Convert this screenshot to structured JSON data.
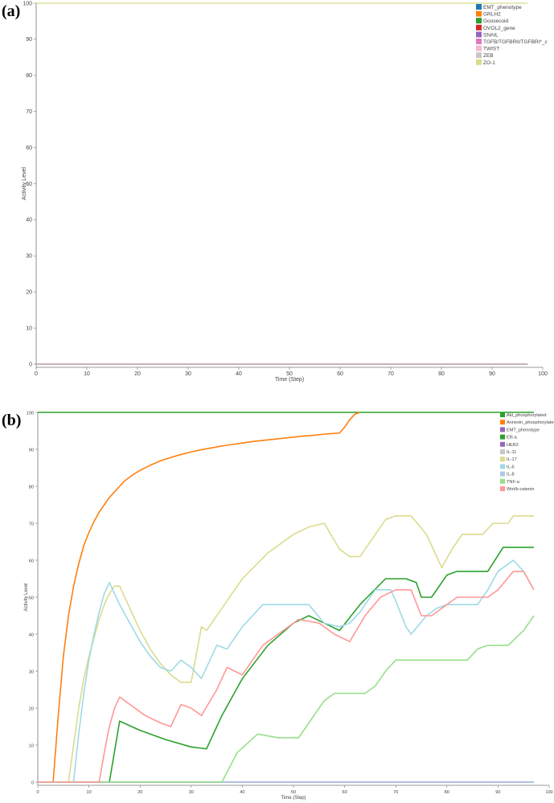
{
  "panels": [
    {
      "label": "(a)"
    },
    {
      "label": "(b)"
    }
  ],
  "chart_data": [
    {
      "type": "line",
      "xlabel": "Time (Step)",
      "ylabel": "Activity Level",
      "xlim": [
        0,
        100
      ],
      "ylim": [
        0,
        100
      ],
      "xticks": [
        0,
        10,
        20,
        30,
        40,
        50,
        60,
        70,
        80,
        90,
        100
      ],
      "yticks": [
        0,
        10,
        20,
        30,
        40,
        50,
        60,
        70,
        80,
        90,
        100
      ],
      "legend_position": "top-right",
      "series": [
        {
          "name": "EMT_phenotype",
          "color": "#1f77b4",
          "x": [
            0,
            97
          ],
          "y": [
            0,
            0
          ]
        },
        {
          "name": "GRLH2",
          "color": "#ff7f0e",
          "x": [
            0,
            97
          ],
          "y": [
            0,
            0
          ]
        },
        {
          "name": "Goosecoid",
          "color": "#2ca02c",
          "x": [
            0,
            97
          ],
          "y": [
            0,
            0
          ]
        },
        {
          "name": "OVOL2_gene",
          "color": "#d62728",
          "x": [
            0,
            97
          ],
          "y": [
            0,
            0
          ]
        },
        {
          "name": "SNAIL",
          "color": "#9467bd",
          "x": [
            0,
            97
          ],
          "y": [
            0,
            0
          ]
        },
        {
          "name": "TGFB/TGFBRII/TGFBRI*_c",
          "color": "#e377c2",
          "x": [
            0,
            97
          ],
          "y": [
            0,
            0
          ]
        },
        {
          "name": "TWIST",
          "color": "#f7b6d2",
          "x": [
            0,
            97
          ],
          "y": [
            0,
            0
          ]
        },
        {
          "name": "ZEB",
          "color": "#c7c7c7",
          "x": [
            0,
            97
          ],
          "y": [
            0,
            0
          ]
        },
        {
          "name": "ZO-1",
          "color": "#dbdb8d",
          "x": [
            0,
            97
          ],
          "y": [
            100,
            100
          ]
        }
      ]
    },
    {
      "type": "line",
      "xlabel": "Time (Step)",
      "ylabel": "Activity Level",
      "xlim": [
        0,
        100
      ],
      "ylim": [
        0,
        100
      ],
      "xticks": [
        0,
        10,
        20,
        30,
        40,
        50,
        60,
        70,
        80,
        90,
        100
      ],
      "yticks": [
        0,
        10,
        20,
        30,
        40,
        50,
        60,
        70,
        80,
        90,
        100
      ],
      "legend_position": "top-right",
      "series": [
        {
          "name": "Akt_phosphorylated",
          "color": "#2ca02c",
          "x": [
            0,
            97
          ],
          "y": [
            100,
            100
          ]
        },
        {
          "name": "Annexin_phosphorylated",
          "color": "#ff7f0e",
          "x": [
            0,
            3,
            4,
            5,
            6,
            7,
            8,
            9,
            10,
            11,
            12,
            13,
            14,
            15,
            16,
            17,
            18,
            19,
            20,
            22,
            24,
            26,
            28,
            30,
            32,
            34,
            36,
            38,
            40,
            42,
            44,
            46,
            48,
            50,
            52,
            54,
            56,
            58,
            59,
            60,
            61,
            62,
            63
          ],
          "y": [
            0,
            0,
            18,
            34,
            45,
            53,
            59,
            64,
            67.5,
            70.5,
            73,
            75,
            77,
            78.5,
            80,
            81.5,
            82.5,
            83.5,
            84.3,
            85.7,
            86.9,
            87.8,
            88.6,
            89.3,
            89.9,
            90.4,
            90.9,
            91.3,
            91.7,
            92.1,
            92.4,
            92.7,
            93,
            93.3,
            93.6,
            93.8,
            94.1,
            94.3,
            94.4,
            96,
            98,
            99.5,
            100
          ]
        },
        {
          "name": "EMT_phenotype",
          "color": "#9467bd",
          "x": [
            0,
            97
          ],
          "y": [
            0,
            0
          ]
        },
        {
          "name": "ER-a",
          "color": "#2ca02c",
          "x": [
            0,
            14,
            16,
            20,
            25,
            30,
            33,
            36,
            40,
            45,
            50,
            53,
            56,
            59,
            63,
            68,
            72,
            74,
            75,
            77,
            80,
            82,
            86,
            88,
            91,
            93,
            95,
            97
          ],
          "y": [
            0,
            0,
            16.5,
            14,
            11.5,
            9.5,
            9,
            18,
            28,
            37,
            43,
            45,
            43,
            41,
            48,
            55,
            55,
            54,
            50,
            50,
            56,
            57,
            57,
            57,
            63.5,
            63.5,
            63.5,
            63.5
          ]
        },
        {
          "name": "HER2",
          "color": "#9467bd",
          "x": [
            0,
            97
          ],
          "y": [
            0,
            0
          ]
        },
        {
          "name": "IL-11",
          "color": "#c7c7c7",
          "x": [
            0,
            97
          ],
          "y": [
            0,
            0
          ]
        },
        {
          "name": "IL-17",
          "color": "#dbdb8d",
          "x": [
            0,
            6,
            7,
            8,
            9,
            10,
            11,
            12,
            13,
            14,
            15,
            16,
            18,
            20,
            22,
            24,
            26,
            28,
            30,
            32,
            33,
            36,
            40,
            45,
            50,
            53,
            56,
            59,
            61,
            63,
            66,
            67,
            68,
            70,
            73,
            76,
            79,
            81,
            83,
            85,
            87,
            89,
            92,
            93,
            95,
            97
          ],
          "y": [
            0,
            0,
            10,
            20,
            28,
            34,
            39,
            44,
            48,
            51,
            53,
            53,
            47,
            41,
            36,
            32,
            29,
            27,
            27,
            42,
            41,
            47,
            55,
            62,
            67,
            69,
            70,
            63,
            61,
            61,
            67,
            69,
            71,
            72,
            72,
            67,
            58,
            63,
            67,
            67,
            67,
            70,
            70,
            72,
            72,
            72
          ]
        },
        {
          "name": "IL-6",
          "color": "#9edae5",
          "x": [
            0,
            7,
            8,
            9,
            10,
            11,
            12,
            13,
            14,
            15,
            16,
            18,
            20,
            22,
            24,
            26,
            28,
            30,
            32,
            35,
            37,
            40,
            44,
            48,
            51,
            53,
            56,
            59,
            61,
            63,
            66,
            69,
            70,
            72,
            73,
            76,
            78,
            80,
            82,
            84,
            86,
            88,
            90,
            93,
            95,
            97
          ],
          "y": [
            0,
            0,
            13,
            24,
            33,
            40,
            46,
            51,
            54,
            51,
            48,
            43,
            38,
            34,
            31,
            30,
            33,
            31,
            28,
            37,
            36,
            42,
            48,
            48,
            48,
            48,
            43,
            42,
            43,
            46,
            52,
            52,
            49,
            42,
            40,
            45,
            47,
            48,
            48,
            48,
            48,
            52,
            57,
            60,
            57,
            52
          ]
        },
        {
          "name": "IL-8",
          "color": "#aec7e8",
          "x": [
            0,
            97
          ],
          "y": [
            0,
            0
          ]
        },
        {
          "name": "TNF-a",
          "color": "#98df8a",
          "x": [
            0,
            36,
            39,
            43,
            47,
            51,
            56,
            58,
            60,
            62,
            64,
            66,
            68,
            70,
            72,
            76,
            80,
            84,
            86,
            88,
            92,
            95,
            97
          ],
          "y": [
            0,
            0,
            8,
            13,
            12,
            12,
            22,
            24,
            24,
            24,
            24,
            26,
            30,
            33,
            33,
            33,
            33,
            33,
            36,
            37,
            37,
            41,
            45
          ]
        },
        {
          "name": "Wnt/b-catenin",
          "color": "#ff9896",
          "x": [
            0,
            12,
            13,
            14,
            15,
            16,
            18,
            21,
            24,
            26,
            28,
            30,
            32,
            35,
            37,
            40,
            44,
            48,
            51,
            55,
            58,
            61,
            64,
            67,
            70,
            73,
            75,
            77,
            80,
            82,
            85,
            88,
            90,
            93,
            95,
            97
          ],
          "y": [
            0,
            0,
            8,
            15,
            20,
            23,
            21,
            18,
            16,
            15,
            21,
            20,
            18,
            25,
            31,
            29,
            37,
            41,
            44,
            43,
            40,
            38,
            45,
            50,
            52,
            52,
            45,
            45,
            48,
            50,
            50,
            50,
            52,
            57,
            57,
            52
          ]
        }
      ]
    }
  ]
}
